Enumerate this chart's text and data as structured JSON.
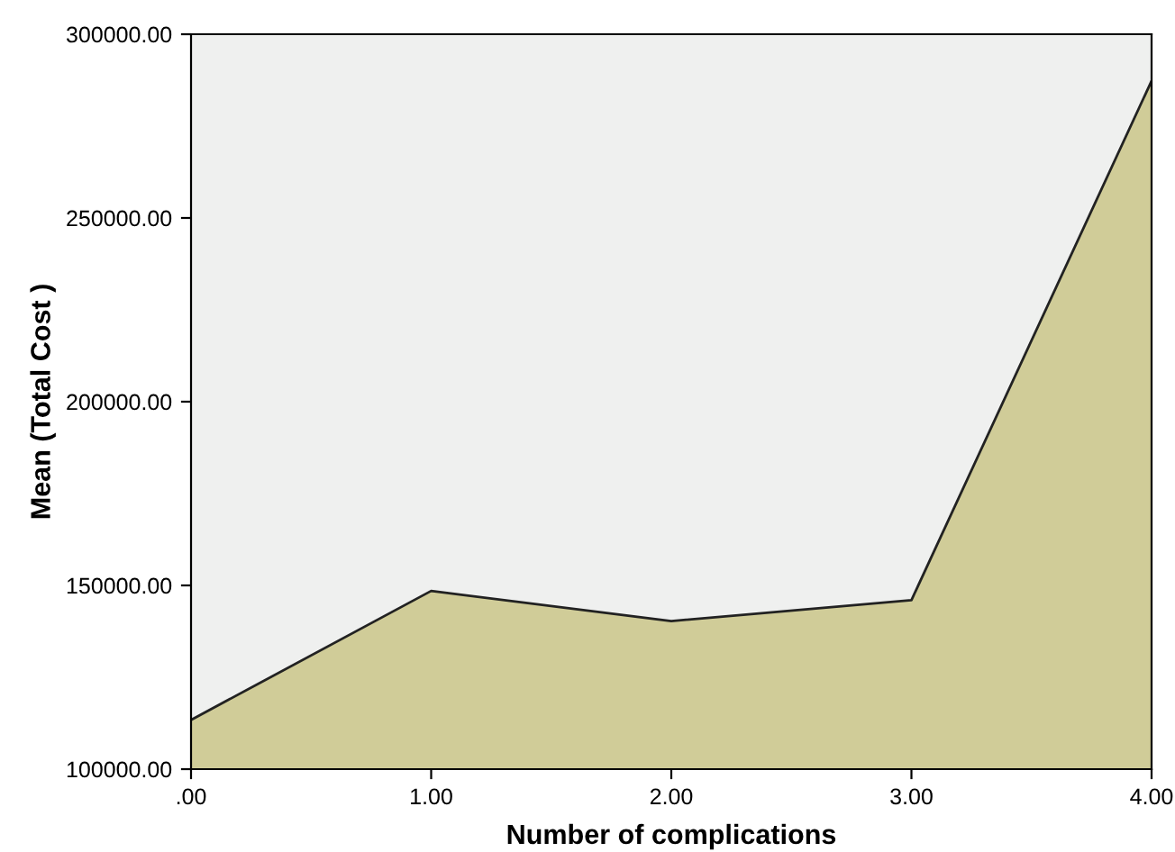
{
  "chart_data": {
    "type": "area",
    "xlabel": "Number of complications",
    "ylabel": "Mean (Total Cost )",
    "x": [
      0,
      1,
      2,
      3,
      4
    ],
    "series": [
      {
        "color": "#d0cc98",
        "values": [
          113400,
          148500,
          140300,
          146000,
          287300
        ]
      }
    ],
    "xlim": [
      0,
      4
    ],
    "xticks": [
      {
        "value": 0,
        "label": ".00"
      },
      {
        "value": 1,
        "label": "1.00"
      },
      {
        "value": 2,
        "label": "2.00"
      },
      {
        "value": 3,
        "label": "3.00"
      },
      {
        "value": 4,
        "label": "4.00"
      }
    ],
    "ylim": [
      100000,
      300000
    ],
    "yticks": [
      {
        "value": 100000,
        "label": "100000.00"
      },
      {
        "value": 150000,
        "label": "150000.00"
      },
      {
        "value": 200000,
        "label": "200000.00"
      },
      {
        "value": 250000,
        "label": "250000.00"
      },
      {
        "value": 300000,
        "label": "300000.00"
      }
    ],
    "grid": false,
    "legend": false
  }
}
